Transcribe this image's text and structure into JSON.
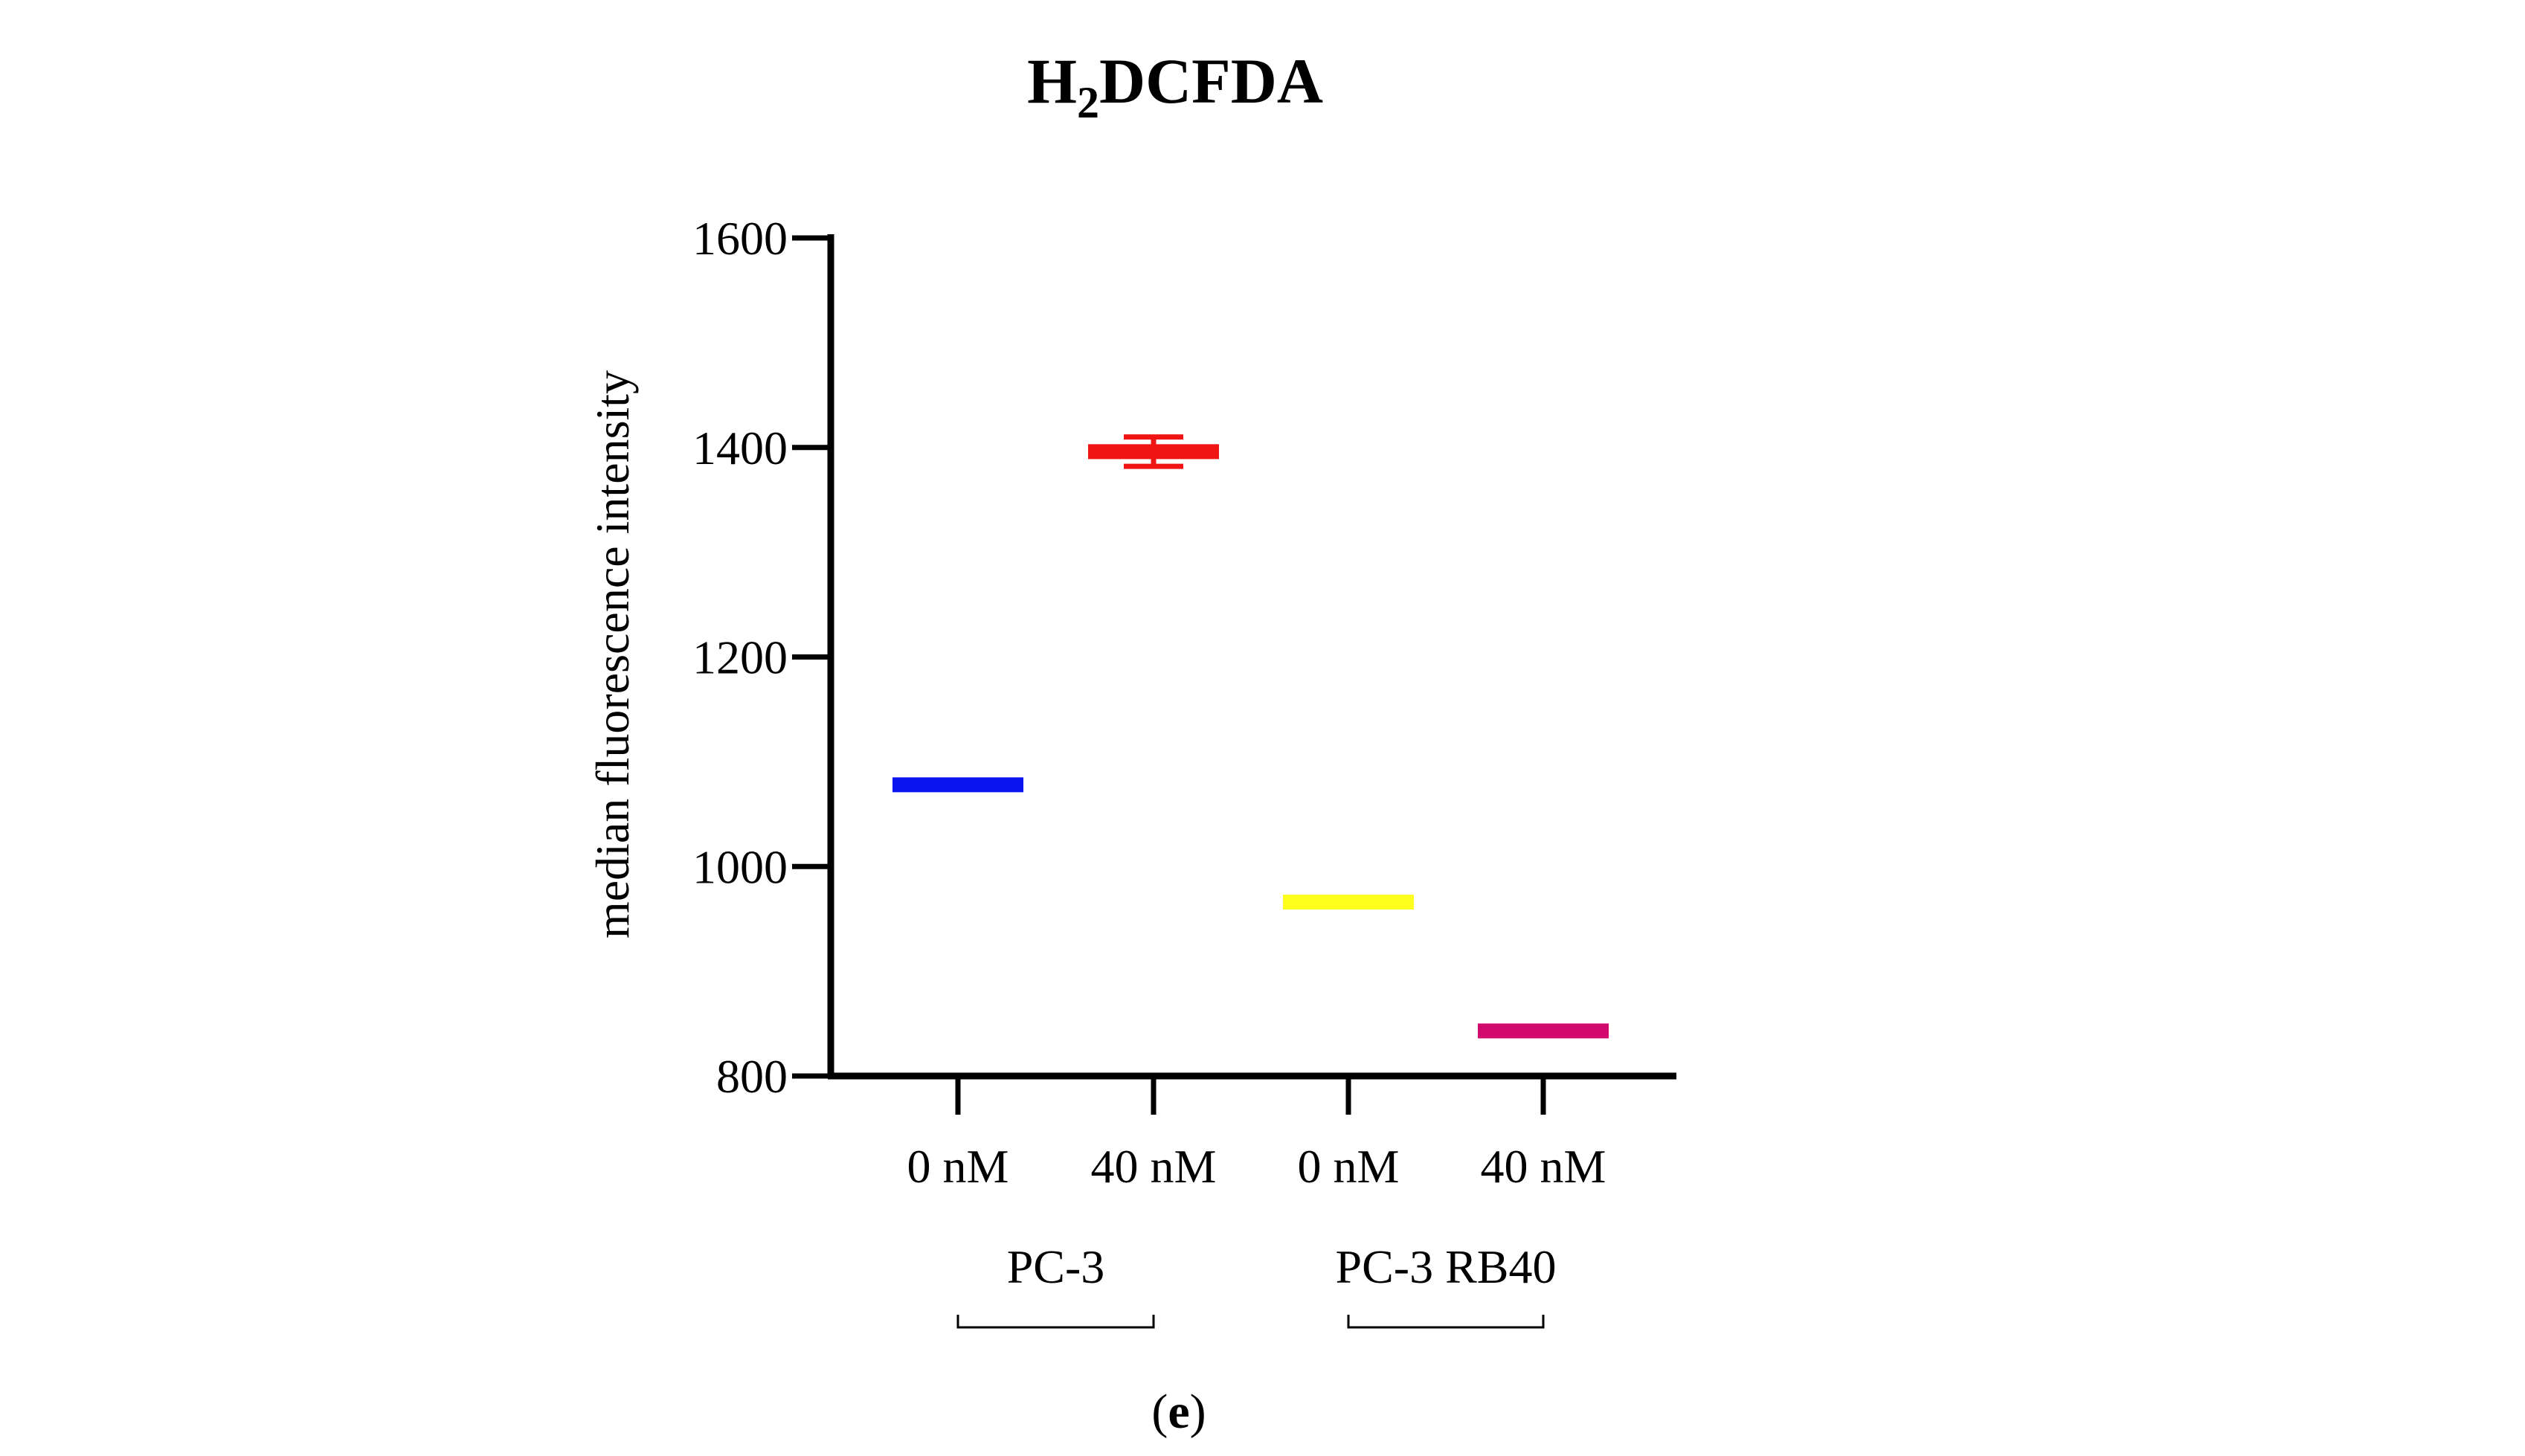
{
  "chart_data": {
    "type": "scatter",
    "title": {
      "main": "H",
      "subscript": "2",
      "rest": "DCFDA"
    },
    "xlabel": "",
    "ylabel": "median fluorescence intensity",
    "ylim": [
      800,
      1600
    ],
    "yticks": [
      "800",
      "1000",
      "1200",
      "1400",
      "1600"
    ],
    "grid": false,
    "categories": [
      "0 nM",
      "40 nM",
      "0 nM",
      "40 nM"
    ],
    "groups": [
      {
        "label": "PC-3",
        "members": [
          0,
          1
        ]
      },
      {
        "label": "PC-3 RB40",
        "members": [
          2,
          3
        ]
      }
    ],
    "points": [
      {
        "category": "0 nM",
        "group": "PC-3",
        "value": 1078,
        "error": 0,
        "color": "#0a14f0"
      },
      {
        "category": "40 nM",
        "group": "PC-3",
        "value": 1396,
        "error": 14,
        "color": "#f01414"
      },
      {
        "category": "0 nM",
        "group": "PC-3 RB40",
        "value": 966,
        "error": 0,
        "color": "#ffff1e"
      },
      {
        "category": "40 nM",
        "group": "PC-3 RB40",
        "value": 843,
        "error": 0,
        "color": "#d20a6e"
      }
    ],
    "panel_label": "e"
  }
}
